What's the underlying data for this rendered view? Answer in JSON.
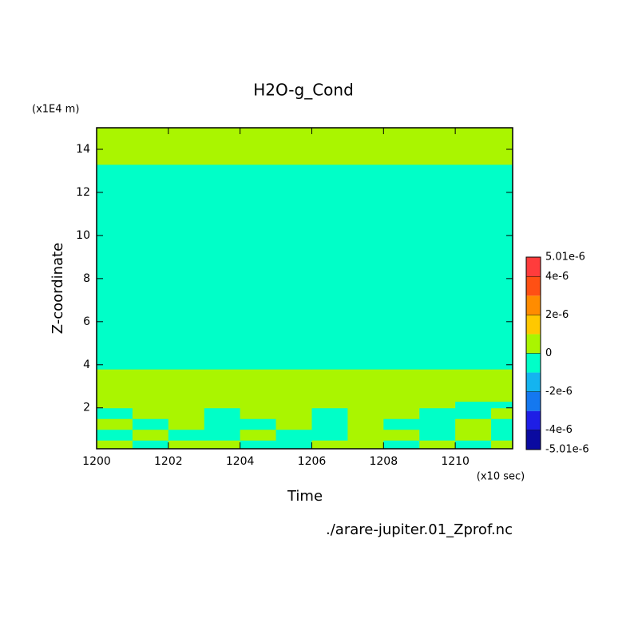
{
  "chart_data": {
    "type": "contour",
    "title": "H2O-g_Cond",
    "y_unit": "(x1E4 m)",
    "y_label": "Z-coordinate",
    "x_unit": "(x10 sec)",
    "x_label": "Time",
    "source": "./arare-jupiter.01_Zprof.nc",
    "xlim": [
      1200,
      1211.6
    ],
    "ylim": [
      0.1,
      15
    ],
    "xticks": [
      1200,
      1202,
      1204,
      1206,
      1208,
      1210
    ],
    "yticks": [
      2,
      4,
      6,
      8,
      10,
      12,
      14
    ],
    "x": [
      1200,
      1201,
      1202,
      1203,
      1204,
      1205,
      1206,
      1207,
      1208,
      1209,
      1210,
      1211,
      1211.6
    ],
    "y": [
      0.1,
      0.5,
      1.0,
      1.5,
      2.0,
      2.3,
      3.8,
      13.3,
      15
    ],
    "z": [
      [
        5e-07,
        -5e-07,
        5e-07,
        5e-07,
        -5e-07,
        -5e-07,
        5e-07,
        5e-07,
        -5e-07,
        5e-07,
        -5e-07,
        5e-07
      ],
      [
        -5e-07,
        5e-07,
        -5e-07,
        -5e-07,
        5e-07,
        -5e-07,
        -5e-07,
        5e-07,
        5e-07,
        -5e-07,
        5e-07,
        -5e-07
      ],
      [
        5e-07,
        -5e-07,
        5e-07,
        -5e-07,
        -5e-07,
        5e-07,
        -5e-07,
        5e-07,
        -5e-07,
        -5e-07,
        5e-07,
        -5e-07
      ],
      [
        -5e-07,
        5e-07,
        5e-07,
        -5e-07,
        5e-07,
        5e-07,
        -5e-07,
        5e-07,
        5e-07,
        -5e-07,
        -5e-07,
        5e-07
      ],
      [
        5e-07,
        5e-07,
        5e-07,
        5e-07,
        5e-07,
        5e-07,
        5e-07,
        5e-07,
        5e-07,
        5e-07,
        -5e-07,
        -5e-07
      ],
      [
        5e-07,
        5e-07,
        5e-07,
        5e-07,
        5e-07,
        5e-07,
        5e-07,
        5e-07,
        5e-07,
        5e-07,
        5e-07,
        5e-07
      ],
      [
        -5e-07,
        -5e-07,
        -5e-07,
        -5e-07,
        -5e-07,
        -5e-07,
        -5e-07,
        -5e-07,
        -5e-07,
        -5e-07,
        -5e-07,
        -5e-07
      ],
      [
        5e-07,
        5e-07,
        5e-07,
        5e-07,
        5e-07,
        5e-07,
        5e-07,
        5e-07,
        5e-07,
        5e-07,
        5e-07,
        5e-07
      ]
    ],
    "colorbar": {
      "levels": [
        -5.01e-06,
        -4e-06,
        -3e-06,
        -2e-06,
        -1e-06,
        0,
        1e-06,
        2e-06,
        3e-06,
        4e-06,
        5.01e-06
      ],
      "colors": [
        "#0a0aa0",
        "#1e1ee6",
        "#1478f0",
        "#14b4f0",
        "#00ffc8",
        "#aaf500",
        "#ffc800",
        "#ff8c00",
        "#ff5014",
        "#ff3c3c"
      ],
      "ticks": [
        {
          "value": 5.01e-06,
          "label": "5.01e-6"
        },
        {
          "value": 4e-06,
          "label": "4e-6"
        },
        {
          "value": 2e-06,
          "label": "2e-6"
        },
        {
          "value": 0,
          "label": "0"
        },
        {
          "value": -2e-06,
          "label": "-2e-6"
        },
        {
          "value": -4e-06,
          "label": "-4e-6"
        },
        {
          "value": -5.01e-06,
          "label": "-5.01e-6"
        }
      ]
    }
  }
}
